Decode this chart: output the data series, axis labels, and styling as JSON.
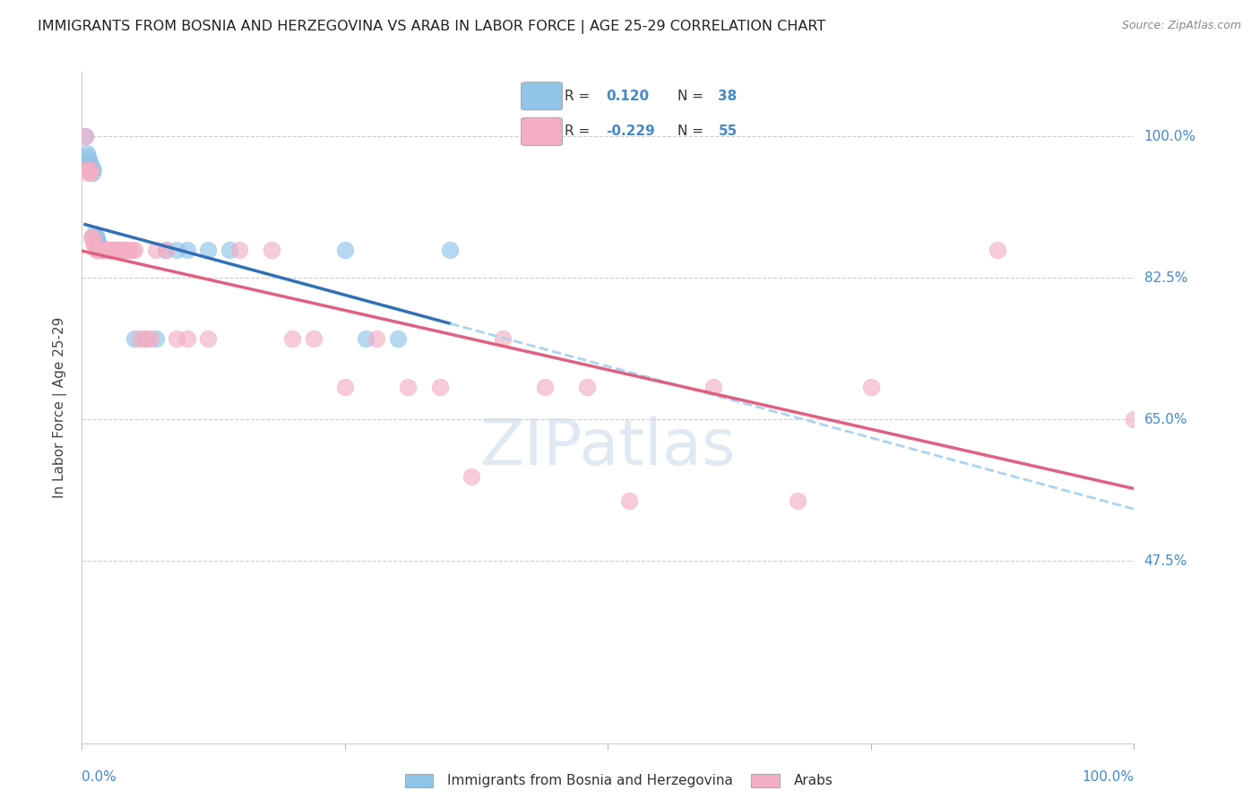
{
  "title": "IMMIGRANTS FROM BOSNIA AND HERZEGOVINA VS ARAB IN LABOR FORCE | AGE 25-29 CORRELATION CHART",
  "source": "Source: ZipAtlas.com",
  "ylabel": "In Labor Force | Age 25-29",
  "r_bosnia": 0.12,
  "n_bosnia": 38,
  "r_arab": -0.229,
  "n_arab": 55,
  "color_bosnia": "#90c4e8",
  "color_arab": "#f4aec4",
  "color_bosnia_line": "#3070b8",
  "color_arab_line": "#e06080",
  "color_bosnia_ext": "#aad4f0",
  "color_tick": "#4488cc",
  "xlim": [
    0.0,
    1.0
  ],
  "ylim": [
    0.25,
    1.08
  ],
  "ytick_vals": [
    1.0,
    0.825,
    0.65,
    0.475
  ],
  "ytick_labels": [
    "100.0%",
    "82.5%",
    "65.0%",
    "47.5%"
  ],
  "bosnia_x": [
    0.003,
    0.005,
    0.006,
    0.007,
    0.008,
    0.009,
    0.01,
    0.011,
    0.012,
    0.013,
    0.014,
    0.015,
    0.016,
    0.017,
    0.018,
    0.019,
    0.02,
    0.021,
    0.022,
    0.023,
    0.025,
    0.027,
    0.03,
    0.033,
    0.036,
    0.04,
    0.05,
    0.06,
    0.07,
    0.08,
    0.09,
    0.1,
    0.12,
    0.14,
    0.25,
    0.27,
    0.3,
    0.35
  ],
  "bosnia_y": [
    1.0,
    0.98,
    0.975,
    0.97,
    0.965,
    0.96,
    0.955,
    0.96,
    0.88,
    0.875,
    0.875,
    0.87,
    0.865,
    0.865,
    0.86,
    0.86,
    0.86,
    0.86,
    0.86,
    0.86,
    0.86,
    0.86,
    0.86,
    0.86,
    0.86,
    0.86,
    0.75,
    0.75,
    0.75,
    0.86,
    0.86,
    0.86,
    0.86,
    0.86,
    0.86,
    0.75,
    0.75,
    0.86
  ],
  "arab_x": [
    0.003,
    0.005,
    0.006,
    0.007,
    0.008,
    0.009,
    0.01,
    0.011,
    0.012,
    0.013,
    0.015,
    0.016,
    0.018,
    0.02,
    0.022,
    0.024,
    0.025,
    0.027,
    0.028,
    0.03,
    0.032,
    0.034,
    0.036,
    0.038,
    0.04,
    0.042,
    0.045,
    0.048,
    0.05,
    0.055,
    0.06,
    0.065,
    0.07,
    0.08,
    0.09,
    0.1,
    0.12,
    0.15,
    0.18,
    0.2,
    0.22,
    0.25,
    0.28,
    0.31,
    0.34,
    0.37,
    0.4,
    0.44,
    0.48,
    0.52,
    0.6,
    0.68,
    0.75,
    0.87,
    1.0
  ],
  "arab_y": [
    1.0,
    0.96,
    0.955,
    0.96,
    0.955,
    0.875,
    0.875,
    0.87,
    0.865,
    0.86,
    0.86,
    0.86,
    0.86,
    0.86,
    0.86,
    0.86,
    0.86,
    0.86,
    0.86,
    0.86,
    0.86,
    0.86,
    0.86,
    0.86,
    0.86,
    0.86,
    0.86,
    0.86,
    0.86,
    0.75,
    0.75,
    0.75,
    0.86,
    0.86,
    0.75,
    0.75,
    0.75,
    0.86,
    0.86,
    0.75,
    0.75,
    0.69,
    0.75,
    0.69,
    0.69,
    0.58,
    0.75,
    0.69,
    0.69,
    0.55,
    0.69,
    0.55,
    0.69,
    0.86,
    0.65
  ]
}
